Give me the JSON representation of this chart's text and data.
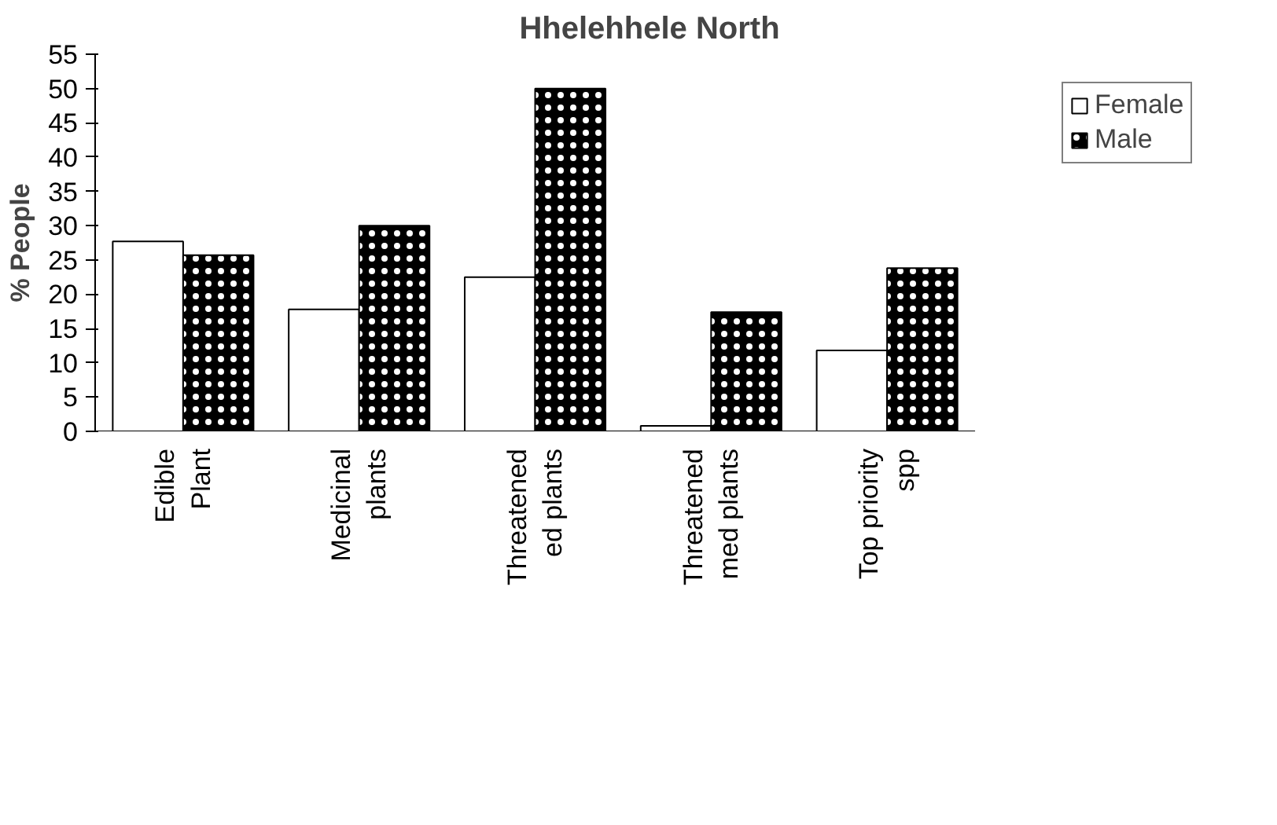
{
  "chart_data": {
    "type": "bar",
    "title": "Hhelehhele North",
    "ylabel": "% People",
    "categories": [
      "Edible\nPlant",
      "Medicinal\nplants",
      "Threatened\ned plants",
      "Threatened\nmed plants",
      "Top priority\nspp"
    ],
    "series": [
      {
        "name": "Female",
        "color": "#ffffff",
        "values": [
          27.7,
          17.8,
          22.5,
          0.8,
          11.8
        ]
      },
      {
        "name": "Male",
        "color": "#000000",
        "values": [
          25.7,
          30,
          50,
          17.4,
          23.8
        ]
      }
    ],
    "ylim": [
      0,
      55
    ],
    "yticks": [
      0,
      5,
      10,
      15,
      20,
      25,
      30,
      35,
      40,
      45,
      50,
      55
    ],
    "grid": false,
    "legend": "right"
  }
}
